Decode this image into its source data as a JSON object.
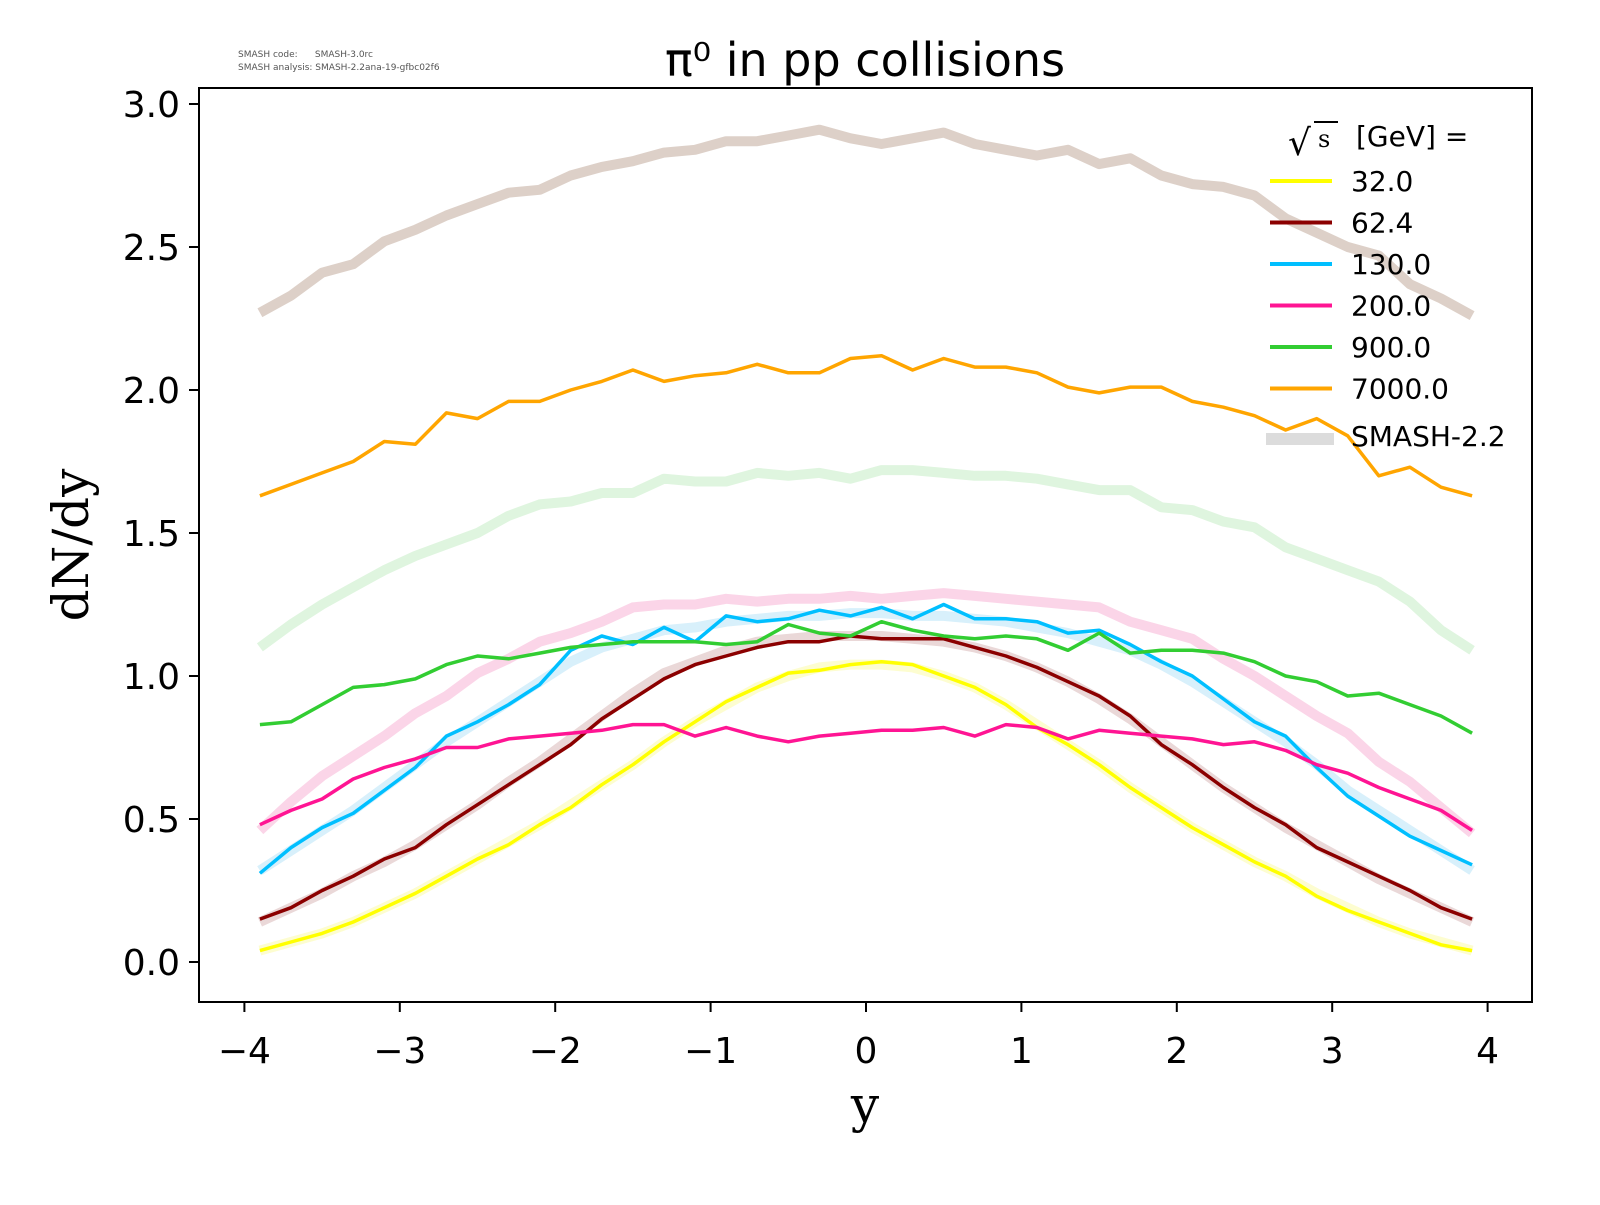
{
  "meta": {
    "code_label": "SMASH code:      SMASH-3.0rc",
    "analysis_label": "SMASH analysis: SMASH-2.2ana-19-gfbc02f6"
  },
  "chart_data": {
    "type": "line",
    "title": "π⁰ in pp collisions",
    "xlabel": "y",
    "ylabel": "dN/dy",
    "xlim": [
      -4.3,
      4.3
    ],
    "ylim": [
      -0.14,
      3.1
    ],
    "xticks": [
      "−4",
      "−3",
      "−2",
      "−1",
      "0",
      "1",
      "2",
      "3",
      "4"
    ],
    "xtick_values": [
      -4,
      -3,
      -2,
      -1,
      0,
      1,
      2,
      3,
      4
    ],
    "yticks": [
      "0.0",
      "0.5",
      "1.0",
      "1.5",
      "2.0",
      "2.5",
      "3.0"
    ],
    "ytick_values": [
      0,
      0.5,
      1,
      1.5,
      2,
      2.5,
      3
    ],
    "legend_title_sqrt": "s",
    "legend_title": "[GeV] =",
    "legend_placement": "top-right",
    "x": [
      -3.9,
      -3.7,
      -3.5,
      -3.3,
      -3.1,
      -2.9,
      -2.7,
      -2.5,
      -2.3,
      -2.1,
      -1.9,
      -1.7,
      -1.5,
      -1.3,
      -1.1,
      -0.9,
      -0.7,
      -0.5,
      -0.3,
      -0.1,
      0.1,
      0.3,
      0.5,
      0.7,
      0.9,
      1.1,
      1.3,
      1.5,
      1.7,
      1.9,
      2.1,
      2.3,
      2.5,
      2.7,
      2.9,
      3.1,
      3.3,
      3.5,
      3.7,
      3.9
    ],
    "reference_label": "SMASH-2.2",
    "reference_color": "#dcdcdc",
    "reference_series": [
      {
        "color": "#ddd0c8",
        "values": [
          2.27,
          2.33,
          2.41,
          2.44,
          2.52,
          2.56,
          2.61,
          2.65,
          2.69,
          2.7,
          2.75,
          2.78,
          2.8,
          2.83,
          2.84,
          2.87,
          2.87,
          2.89,
          2.91,
          2.88,
          2.86,
          2.88,
          2.9,
          2.86,
          2.84,
          2.82,
          2.84,
          2.79,
          2.81,
          2.75,
          2.72,
          2.71,
          2.68,
          2.6,
          2.55,
          2.5,
          2.47,
          2.37,
          2.32,
          2.26
        ]
      },
      {
        "color": "#dff5df",
        "values": [
          1.1,
          1.18,
          1.25,
          1.31,
          1.37,
          1.42,
          1.46,
          1.5,
          1.56,
          1.6,
          1.61,
          1.64,
          1.64,
          1.69,
          1.68,
          1.68,
          1.71,
          1.7,
          1.71,
          1.69,
          1.72,
          1.72,
          1.71,
          1.7,
          1.7,
          1.69,
          1.67,
          1.65,
          1.65,
          1.59,
          1.58,
          1.54,
          1.52,
          1.45,
          1.41,
          1.37,
          1.33,
          1.26,
          1.16,
          1.09
        ]
      },
      {
        "color": "#fbd5e8",
        "values": [
          0.46,
          0.56,
          0.65,
          0.72,
          0.79,
          0.87,
          0.93,
          1.01,
          1.06,
          1.12,
          1.15,
          1.19,
          1.24,
          1.25,
          1.25,
          1.27,
          1.26,
          1.27,
          1.27,
          1.28,
          1.27,
          1.28,
          1.29,
          1.28,
          1.27,
          1.26,
          1.25,
          1.24,
          1.19,
          1.16,
          1.13,
          1.06,
          1.0,
          0.93,
          0.86,
          0.8,
          0.7,
          0.63,
          0.54,
          0.45
        ]
      },
      {
        "color": "#d8f0fb",
        "values": [
          0.32,
          0.39,
          0.46,
          0.53,
          0.61,
          0.69,
          0.77,
          0.84,
          0.91,
          0.98,
          1.05,
          1.1,
          1.13,
          1.16,
          1.17,
          1.19,
          1.2,
          1.21,
          1.21,
          1.22,
          1.22,
          1.21,
          1.21,
          1.2,
          1.19,
          1.17,
          1.15,
          1.12,
          1.09,
          1.04,
          0.98,
          0.91,
          0.84,
          0.77,
          0.69,
          0.6,
          0.53,
          0.46,
          0.39,
          0.32
        ]
      },
      {
        "color": "#ead8d8",
        "values": [
          0.14,
          0.19,
          0.24,
          0.3,
          0.35,
          0.41,
          0.48,
          0.55,
          0.63,
          0.7,
          0.78,
          0.86,
          0.94,
          1.01,
          1.05,
          1.09,
          1.12,
          1.13,
          1.14,
          1.14,
          1.14,
          1.13,
          1.12,
          1.1,
          1.07,
          1.03,
          0.98,
          0.92,
          0.85,
          0.77,
          0.69,
          0.61,
          0.54,
          0.47,
          0.41,
          0.35,
          0.29,
          0.24,
          0.19,
          0.14
        ]
      },
      {
        "color": "#fdfdd0",
        "values": [
          0.04,
          0.07,
          0.1,
          0.14,
          0.19,
          0.24,
          0.3,
          0.36,
          0.42,
          0.48,
          0.55,
          0.62,
          0.69,
          0.77,
          0.84,
          0.9,
          0.96,
          1.0,
          1.03,
          1.04,
          1.04,
          1.03,
          1.0,
          0.96,
          0.9,
          0.83,
          0.76,
          0.69,
          0.61,
          0.54,
          0.47,
          0.41,
          0.35,
          0.3,
          0.24,
          0.19,
          0.14,
          0.1,
          0.07,
          0.04
        ]
      }
    ],
    "series": [
      {
        "name": "32.0",
        "color": "#ffff00",
        "values": [
          0.04,
          0.07,
          0.1,
          0.14,
          0.19,
          0.24,
          0.3,
          0.36,
          0.41,
          0.48,
          0.54,
          0.62,
          0.69,
          0.77,
          0.84,
          0.91,
          0.96,
          1.01,
          1.02,
          1.04,
          1.05,
          1.04,
          1.0,
          0.96,
          0.9,
          0.82,
          0.76,
          0.69,
          0.61,
          0.54,
          0.47,
          0.41,
          0.35,
          0.3,
          0.23,
          0.18,
          0.14,
          0.1,
          0.06,
          0.04
        ]
      },
      {
        "name": "62.4",
        "color": "#8b0000",
        "values": [
          0.15,
          0.19,
          0.25,
          0.3,
          0.36,
          0.4,
          0.48,
          0.55,
          0.62,
          0.69,
          0.76,
          0.85,
          0.92,
          0.99,
          1.04,
          1.07,
          1.1,
          1.12,
          1.12,
          1.14,
          1.13,
          1.13,
          1.13,
          1.1,
          1.07,
          1.03,
          0.98,
          0.93,
          0.86,
          0.76,
          0.69,
          0.61,
          0.54,
          0.48,
          0.4,
          0.35,
          0.3,
          0.25,
          0.19,
          0.15
        ]
      },
      {
        "name": "130.0",
        "color": "#00bfff",
        "values": [
          0.31,
          0.4,
          0.47,
          0.52,
          0.6,
          0.68,
          0.79,
          0.84,
          0.9,
          0.97,
          1.09,
          1.14,
          1.11,
          1.17,
          1.12,
          1.21,
          1.19,
          1.2,
          1.23,
          1.21,
          1.24,
          1.2,
          1.25,
          1.2,
          1.2,
          1.19,
          1.15,
          1.16,
          1.11,
          1.05,
          1.0,
          0.92,
          0.84,
          0.79,
          0.68,
          0.58,
          0.51,
          0.44,
          0.39,
          0.34
        ]
      },
      {
        "name": "200.0",
        "color": "#ff1493",
        "values": [
          0.48,
          0.53,
          0.57,
          0.64,
          0.68,
          0.71,
          0.75,
          0.75,
          0.78,
          0.79,
          0.8,
          0.81,
          0.83,
          0.83,
          0.79,
          0.82,
          0.79,
          0.77,
          0.79,
          0.8,
          0.81,
          0.81,
          0.82,
          0.79,
          0.83,
          0.82,
          0.78,
          0.81,
          0.8,
          0.79,
          0.78,
          0.76,
          0.77,
          0.74,
          0.69,
          0.66,
          0.61,
          0.57,
          0.53,
          0.46
        ]
      },
      {
        "name": "900.0",
        "color": "#32cd32",
        "values": [
          0.83,
          0.84,
          0.9,
          0.96,
          0.97,
          0.99,
          1.04,
          1.07,
          1.06,
          1.08,
          1.1,
          1.11,
          1.12,
          1.12,
          1.12,
          1.11,
          1.12,
          1.18,
          1.15,
          1.14,
          1.19,
          1.16,
          1.14,
          1.13,
          1.14,
          1.13,
          1.09,
          1.15,
          1.08,
          1.09,
          1.09,
          1.08,
          1.05,
          1.0,
          0.98,
          0.93,
          0.94,
          0.9,
          0.86,
          0.8
        ]
      },
      {
        "name": "7000.0",
        "color": "#ffa500",
        "values": [
          1.63,
          1.67,
          1.71,
          1.75,
          1.82,
          1.81,
          1.92,
          1.9,
          1.96,
          1.96,
          2.0,
          2.03,
          2.07,
          2.03,
          2.05,
          2.06,
          2.09,
          2.06,
          2.06,
          2.11,
          2.12,
          2.07,
          2.11,
          2.08,
          2.08,
          2.06,
          2.01,
          1.99,
          2.01,
          2.01,
          1.96,
          1.94,
          1.91,
          1.86,
          1.9,
          1.84,
          1.7,
          1.73,
          1.66,
          1.63
        ]
      }
    ]
  }
}
